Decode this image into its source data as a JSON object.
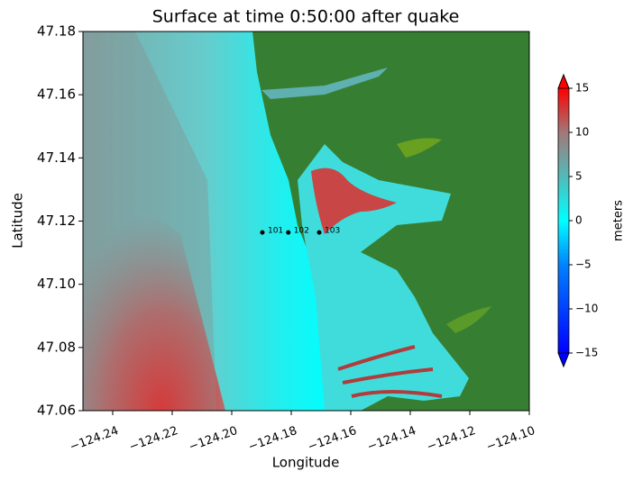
{
  "chart_data": {
    "type": "map",
    "title": "Surface at time 0:50:00 after quake",
    "x_label": "Longitude",
    "y_label": "Latitude",
    "xlim": [
      -124.25,
      -124.1
    ],
    "ylim": [
      47.06,
      47.18
    ],
    "xticks": [
      {
        "value": -124.24,
        "label": "−124.24"
      },
      {
        "value": -124.22,
        "label": "−124.22"
      },
      {
        "value": -124.2,
        "label": "−124.20"
      },
      {
        "value": -124.18,
        "label": "−124.18"
      },
      {
        "value": -124.16,
        "label": "−124.16"
      },
      {
        "value": -124.14,
        "label": "−124.14"
      },
      {
        "value": -124.12,
        "label": "−124.12"
      },
      {
        "value": -124.1,
        "label": "−124.10"
      }
    ],
    "yticks": [
      47.06,
      47.08,
      {
        "value": 47.1,
        "label": "47.10"
      },
      47.12,
      47.14,
      47.16,
      47.18
    ],
    "gauges": [
      {
        "name": "101",
        "lon": -124.1897,
        "lat": 47.1164
      },
      {
        "name": "102",
        "lon": -124.181,
        "lat": 47.1164
      },
      {
        "name": "103",
        "lon": -124.1706,
        "lat": 47.1164
      }
    ],
    "colorbar": {
      "label": "meters",
      "lim": [
        -15,
        15
      ],
      "ticks": [
        {
          "value": -15,
          "label": "−15"
        },
        {
          "value": -10,
          "label": "−10"
        },
        {
          "value": -5,
          "label": "−5"
        },
        0,
        5,
        10,
        15
      ]
    }
  }
}
